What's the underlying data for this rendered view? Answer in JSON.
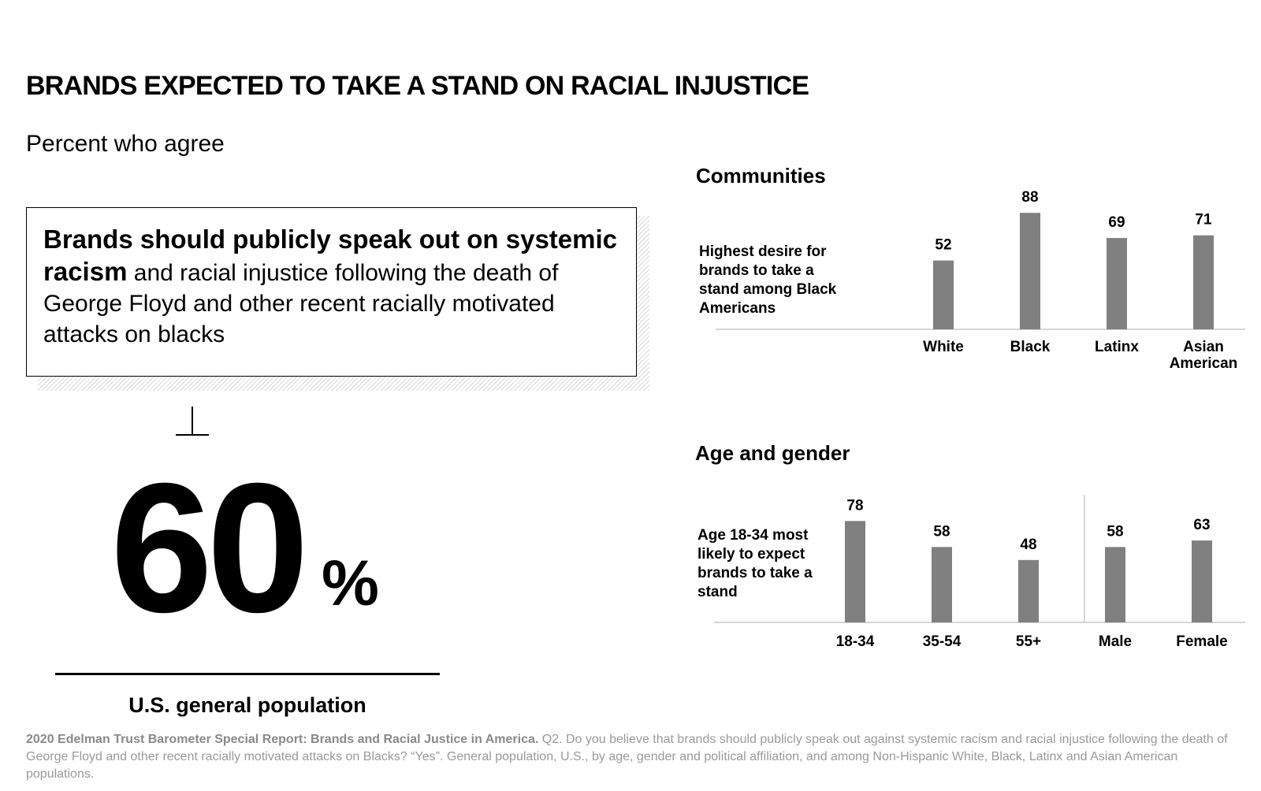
{
  "header": {
    "title": "BRANDS EXPECTED TO TAKE A STAND ON RACIAL INJUSTICE",
    "subtitle": "Percent who agree"
  },
  "statement": {
    "bold_part": "Brands should publicly speak out on systemic racism",
    "rest": " and racial injustice following the death of George Floyd and other recent racially motivated attacks on blacks"
  },
  "headline_stat": {
    "value": "60",
    "unit": "%",
    "label": "U.S. general population"
  },
  "chart_data": [
    {
      "type": "bar",
      "title": "Communities",
      "note": "Highest desire for brands to take a stand among Black Americans",
      "categories": [
        "White",
        "Black",
        "Latinx",
        "Asian American"
      ],
      "values": [
        52,
        88,
        69,
        71
      ],
      "ylim": [
        0,
        100
      ],
      "bar_color": "#808080",
      "grid": false
    },
    {
      "type": "bar",
      "title": "Age and gender",
      "note": "Age 18-34 most likely to expect brands to take a stand",
      "categories": [
        "18-34",
        "35-54",
        "55+",
        "Male",
        "Female"
      ],
      "values": [
        78,
        58,
        48,
        58,
        63
      ],
      "ylim": [
        0,
        100
      ],
      "bar_color": "#808080",
      "grid": false
    }
  ],
  "footnote": {
    "source": "2020 Edelman Trust Barometer Special Report: Brands and Racial Justice in America.",
    "text": " Q2. Do you believe that brands should publicly speak out against systemic racism and racial injustice following the death of George Floyd and other recent racially motivated attacks on Blacks? “Yes”. General population, U.S., by age, gender and political affiliation, and among Non-Hispanic White, Black, Latinx and Asian American populations."
  }
}
